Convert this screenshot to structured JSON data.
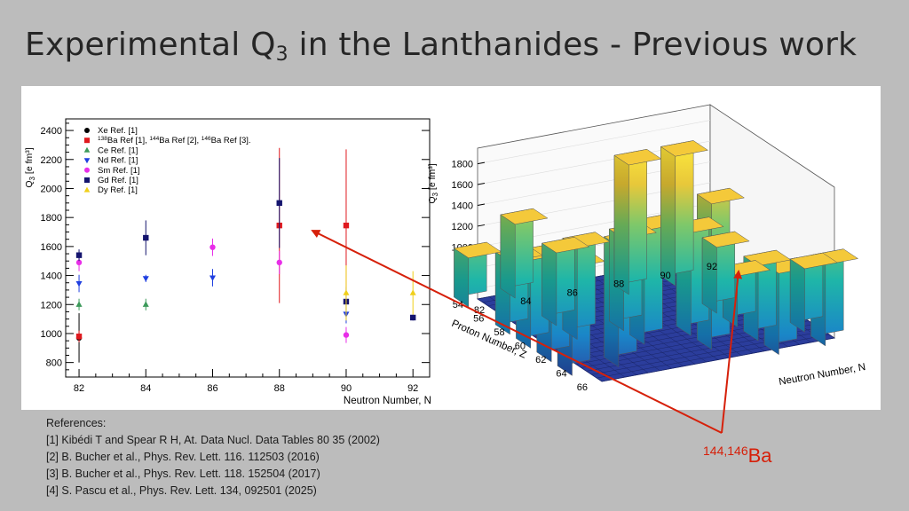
{
  "slide": {
    "title_main": "Experimental Q",
    "title_sub": "3",
    "title_rest": " in the Lanthanides - Previous work"
  },
  "references": {
    "heading": "References:",
    "items": [
      "[1]  Kibédi T and Spear R H, At. Data Nucl. Data Tables 80 35 (2002)",
      "[2] B. Bucher et al., Phys. Rev. Lett. 116. 112503 (2016)",
      "[3] B. Bucher et al., Phys. Rev. Lett. 118. 152504 (2017)",
      "[4] S. Pascu et al., Phys. Rev. Lett. 134, 092501 (2025)"
    ]
  },
  "annotation": {
    "mass": "144,146",
    "element": "Ba",
    "color": "#d6200a"
  },
  "chart_data": [
    {
      "type": "scatter",
      "xlabel": "Neutron Number, N",
      "ylabel": "Q",
      "ylabel_sub": "3",
      "ylabel_unit": " [e fm³]",
      "xlim": [
        81.6,
        92.5
      ],
      "ylim": [
        700,
        2480
      ],
      "xticks": [
        82,
        84,
        86,
        88,
        90,
        92
      ],
      "yticks": [
        800,
        1000,
        1200,
        1400,
        1600,
        1800,
        2000,
        2200,
        2400
      ],
      "legend_position": "top-left",
      "legend": [
        {
          "label": "Xe Ref. [1]",
          "marker": "circle",
          "color": "#000000"
        },
        {
          "label": "Ba Ref [1], ",
          "pre": "138",
          "mid": "Ba Ref [2], ",
          "midpre": "144",
          "end": "Ba Ref [3].",
          "endpre": "146",
          "marker": "square",
          "color": "#e0191e"
        },
        {
          "label": "Ce Ref. [1]",
          "marker": "triangle-up",
          "color": "#3c9a5a"
        },
        {
          "label": "Nd Ref. [1]",
          "marker": "triangle-down",
          "color": "#1f3fe0"
        },
        {
          "label": "Sm Ref. [1]",
          "marker": "circle",
          "color": "#e82ee8"
        },
        {
          "label": "Gd Ref. [1]",
          "marker": "square",
          "color": "#14146e"
        },
        {
          "label": "Dy Ref. [1]",
          "marker": "triangle-up",
          "color": "#f0cf1a"
        }
      ],
      "series": [
        {
          "element": "Xe",
          "marker": "circle",
          "color": "#000000",
          "points": [
            {
              "x": 82,
              "y": 970,
              "err": 170
            }
          ]
        },
        {
          "element": "Ba",
          "marker": "square",
          "color": "#e0191e",
          "points": [
            {
              "x": 82,
              "y": 980,
              "err": 40
            },
            {
              "x": 88,
              "y": 1745,
              "err": 535
            },
            {
              "x": 90,
              "y": 1745,
              "err": 525
            }
          ]
        },
        {
          "element": "Ce",
          "marker": "triangle-up",
          "color": "#3c9a5a",
          "points": [
            {
              "x": 82,
              "y": 1200,
              "err": 40
            },
            {
              "x": 84,
              "y": 1200,
              "err": 40
            }
          ]
        },
        {
          "element": "Nd",
          "marker": "triangle-down",
          "color": "#1f3fe0",
          "points": [
            {
              "x": 82,
              "y": 1345,
              "err": 60
            },
            {
              "x": 84,
              "y": 1380,
              "err": 25
            },
            {
              "x": 86,
              "y": 1385,
              "err": 60
            },
            {
              "x": 90,
              "y": 1135,
              "err": 65
            }
          ]
        },
        {
          "element": "Sm",
          "marker": "circle",
          "color": "#e82ee8",
          "points": [
            {
              "x": 82,
              "y": 1490,
              "err": 60
            },
            {
              "x": 86,
              "y": 1595,
              "err": 60
            },
            {
              "x": 88,
              "y": 1490,
              "err": 80
            },
            {
              "x": 90,
              "y": 990,
              "err": 55
            }
          ]
        },
        {
          "element": "Gd",
          "marker": "square",
          "color": "#14146e",
          "points": [
            {
              "x": 82,
              "y": 1540,
              "err": 40
            },
            {
              "x": 84,
              "y": 1660,
              "err": 120
            },
            {
              "x": 88,
              "y": 1900,
              "err": 310
            },
            {
              "x": 90,
              "y": 1220,
              "err": 100
            },
            {
              "x": 92,
              "y": 1110,
              "err": 20
            }
          ]
        },
        {
          "element": "Dy",
          "marker": "triangle-up",
          "color": "#f0cf1a",
          "points": [
            {
              "x": 90,
              "y": 1280,
              "err": 190
            },
            {
              "x": 92,
              "y": 1280,
              "err": 150
            }
          ]
        }
      ]
    },
    {
      "type": "bar3d",
      "xlabel": "Neutron Number, N",
      "zlabel": "Proton Number, Z",
      "ylabel": "Q",
      "ylabel_sub": "3",
      "ylabel_unit": " [e fm³]",
      "xticks": [
        82,
        84,
        86,
        88,
        90,
        92
      ],
      "zticks": [
        54,
        56,
        58,
        60,
        62,
        64,
        66
      ],
      "yticks": [
        600,
        800,
        1000,
        1200,
        1400,
        1600,
        1800
      ],
      "ylim": [
        500,
        1950
      ],
      "bars": [
        {
          "n": 82,
          "z": 54,
          "q": 970
        },
        {
          "n": 84,
          "z": 54,
          "q": 1210
        },
        {
          "n": 88,
          "z": 56,
          "q": 1745
        },
        {
          "n": 90,
          "z": 56,
          "q": 1745
        },
        {
          "n": 82,
          "z": 58,
          "q": 1200
        },
        {
          "n": 84,
          "z": 58,
          "q": 1200
        },
        {
          "n": 82,
          "z": 60,
          "q": 1345
        },
        {
          "n": 84,
          "z": 60,
          "q": 1380
        },
        {
          "n": 86,
          "z": 60,
          "q": 1385
        },
        {
          "n": 90,
          "z": 60,
          "q": 1135
        },
        {
          "n": 82,
          "z": 62,
          "q": 1490
        },
        {
          "n": 86,
          "z": 62,
          "q": 1595
        },
        {
          "n": 88,
          "z": 62,
          "q": 1490
        },
        {
          "n": 90,
          "z": 62,
          "q": 990
        },
        {
          "n": 82,
          "z": 64,
          "q": 1540
        },
        {
          "n": 84,
          "z": 64,
          "q": 1660
        },
        {
          "n": 88,
          "z": 64,
          "q": 1900
        },
        {
          "n": 90,
          "z": 64,
          "q": 1220
        },
        {
          "n": 92,
          "z": 64,
          "q": 1110
        },
        {
          "n": 90,
          "z": 66,
          "q": 1280
        },
        {
          "n": 92,
          "z": 66,
          "q": 1280
        }
      ]
    }
  ]
}
